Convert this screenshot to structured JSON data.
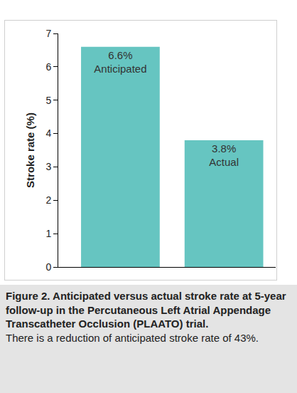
{
  "chart_data": {
    "type": "bar",
    "title": "Figure 2. Anticipated versus actual stroke rate at 5-year follow-up in the Percutaneous Left Atrial Appendage Transcatheter Occlusion (PLAATO) trial.",
    "subtitle": "There is a reduction of anticipated stroke rate of 43%.",
    "ylabel": "Stroke rate (%)",
    "categories": [
      "Anticipated",
      "Actual"
    ],
    "values": [
      6.6,
      3.8
    ],
    "value_labels": [
      "6.6%",
      "3.8%"
    ],
    "color": "#66c5c1",
    "ylim": [
      0,
      7
    ],
    "yticks": [
      0,
      1,
      2,
      3,
      4,
      5,
      6,
      7
    ],
    "grid": false,
    "data_labels": true,
    "tick_labels": "y"
  }
}
